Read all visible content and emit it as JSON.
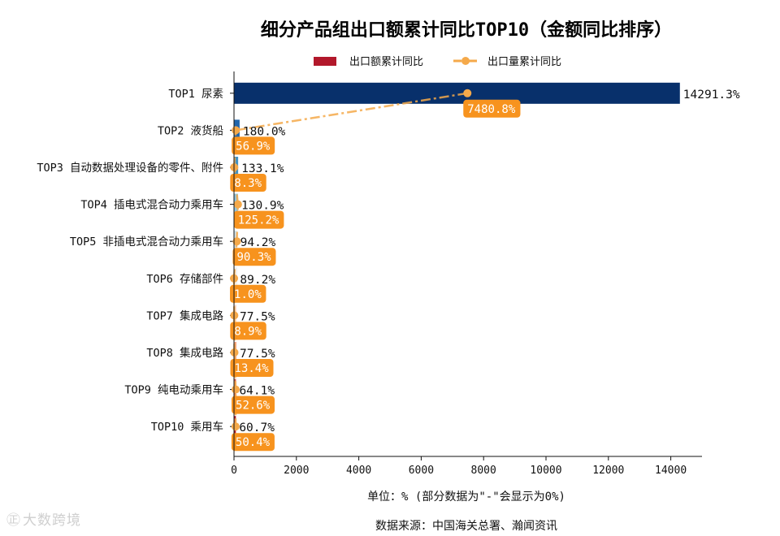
{
  "chart_data": {
    "type": "bar",
    "orientation": "horizontal",
    "title": "细分产品组出口额累计同比TOP10（金额同比排序）",
    "categories": [
      "TOP1 尿素",
      "TOP2 液货船",
      "TOP3 自动数据处理设备的零件、附件",
      "TOP4 插电式混合动力乘用车",
      "TOP5 非插电式混合动力乘用车",
      "TOP6 存储部件",
      "TOP7 集成电路",
      "TOP8 集成电路",
      "TOP9 纯电动乘用车",
      "TOP10 乘用车"
    ],
    "series": [
      {
        "name": "出口额累计同比",
        "type": "bar",
        "values": [
          14291.3,
          180.0,
          133.1,
          130.9,
          94.2,
          89.2,
          77.5,
          77.5,
          64.1,
          60.7
        ],
        "labels": [
          "14291.3%",
          "180.0%",
          "133.1%",
          "130.9%",
          "94.2%",
          "89.2%",
          "77.5%",
          "77.5%",
          "64.1%",
          "60.7%"
        ],
        "bar_colors": [
          "#08306b",
          "#2166ac",
          "#4393c3",
          "#92c5de",
          "#d1e5f0",
          "#f7f7f7",
          "#fddbc7",
          "#f4a582",
          "#d6604d",
          "#b2182b"
        ]
      },
      {
        "name": "出口量累计同比",
        "type": "line",
        "values": [
          7480.8,
          56.9,
          8.3,
          125.2,
          90.3,
          1.0,
          8.9,
          13.4,
          52.6,
          50.4
        ],
        "labels": [
          "7480.8%",
          "56.9%",
          "8.3%",
          "125.2%",
          "90.3%",
          "1.0%",
          "8.9%",
          "13.4%",
          "52.6%",
          "50.4%"
        ],
        "color": "#f5a94a"
      }
    ],
    "legend_colors": [
      "#b2182b",
      "#f5a94a"
    ],
    "badge_color": "#f7931e",
    "xlim": [
      0,
      15000
    ],
    "xticks": [
      0,
      2000,
      4000,
      6000,
      8000,
      10000,
      12000,
      14000
    ],
    "xlabel": "单位：%  (部分数据为\"-\"会显示为0%)",
    "source": "数据来源：中国海关总署、瀚闻资讯",
    "legend_position": "top-center",
    "grid": false
  },
  "watermark": {
    "icon": "hand-drawn-logo-icon",
    "glyph": "㊣",
    "text": "大数跨境"
  }
}
